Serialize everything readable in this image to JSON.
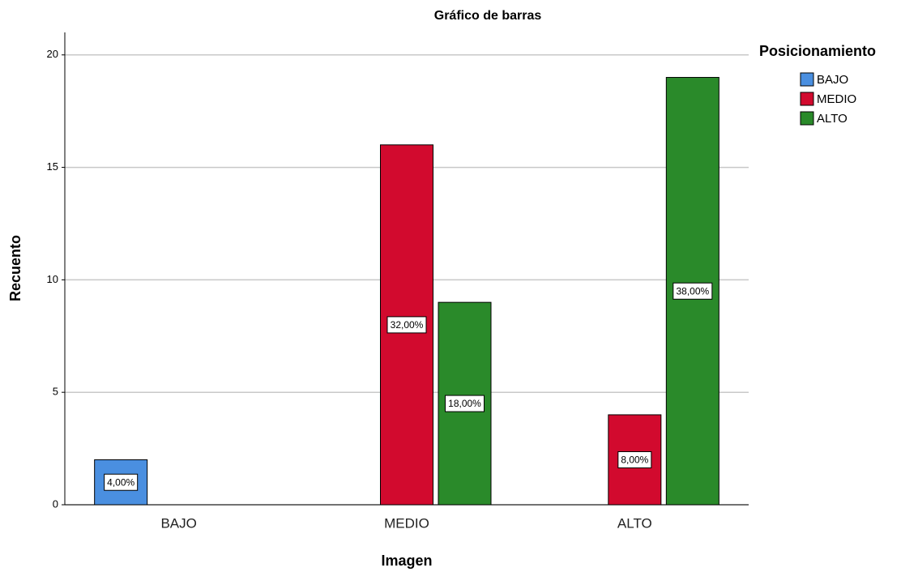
{
  "chart_data": {
    "type": "bar",
    "title": "Gráfico de barras",
    "x_label": "Imagen",
    "y_label": "Recuento",
    "categories": [
      "BAJO",
      "MEDIO",
      "ALTO"
    ],
    "legend_title": "Posicionamiento",
    "legend_position": "right",
    "series": [
      {
        "name": "BAJO",
        "color": "#4a8fe0",
        "values": [
          2,
          null,
          null
        ],
        "percentages": [
          4,
          null,
          null
        ],
        "percentage_labels": [
          "4,00%",
          null,
          null
        ]
      },
      {
        "name": "MEDIO",
        "color": "#d20a2e",
        "values": [
          null,
          16,
          4
        ],
        "percentages": [
          null,
          32,
          8
        ],
        "percentage_labels": [
          null,
          "32,00%",
          "8,00%"
        ]
      },
      {
        "name": "ALTO",
        "color": "#2a8a2a",
        "values": [
          null,
          9,
          19
        ],
        "percentages": [
          null,
          18,
          38
        ],
        "percentage_labels": [
          null,
          "18,00%",
          "38,00%"
        ]
      }
    ],
    "ylim": [
      0,
      21
    ],
    "yticks": [
      0,
      5,
      10,
      15,
      20
    ],
    "grid": true
  }
}
